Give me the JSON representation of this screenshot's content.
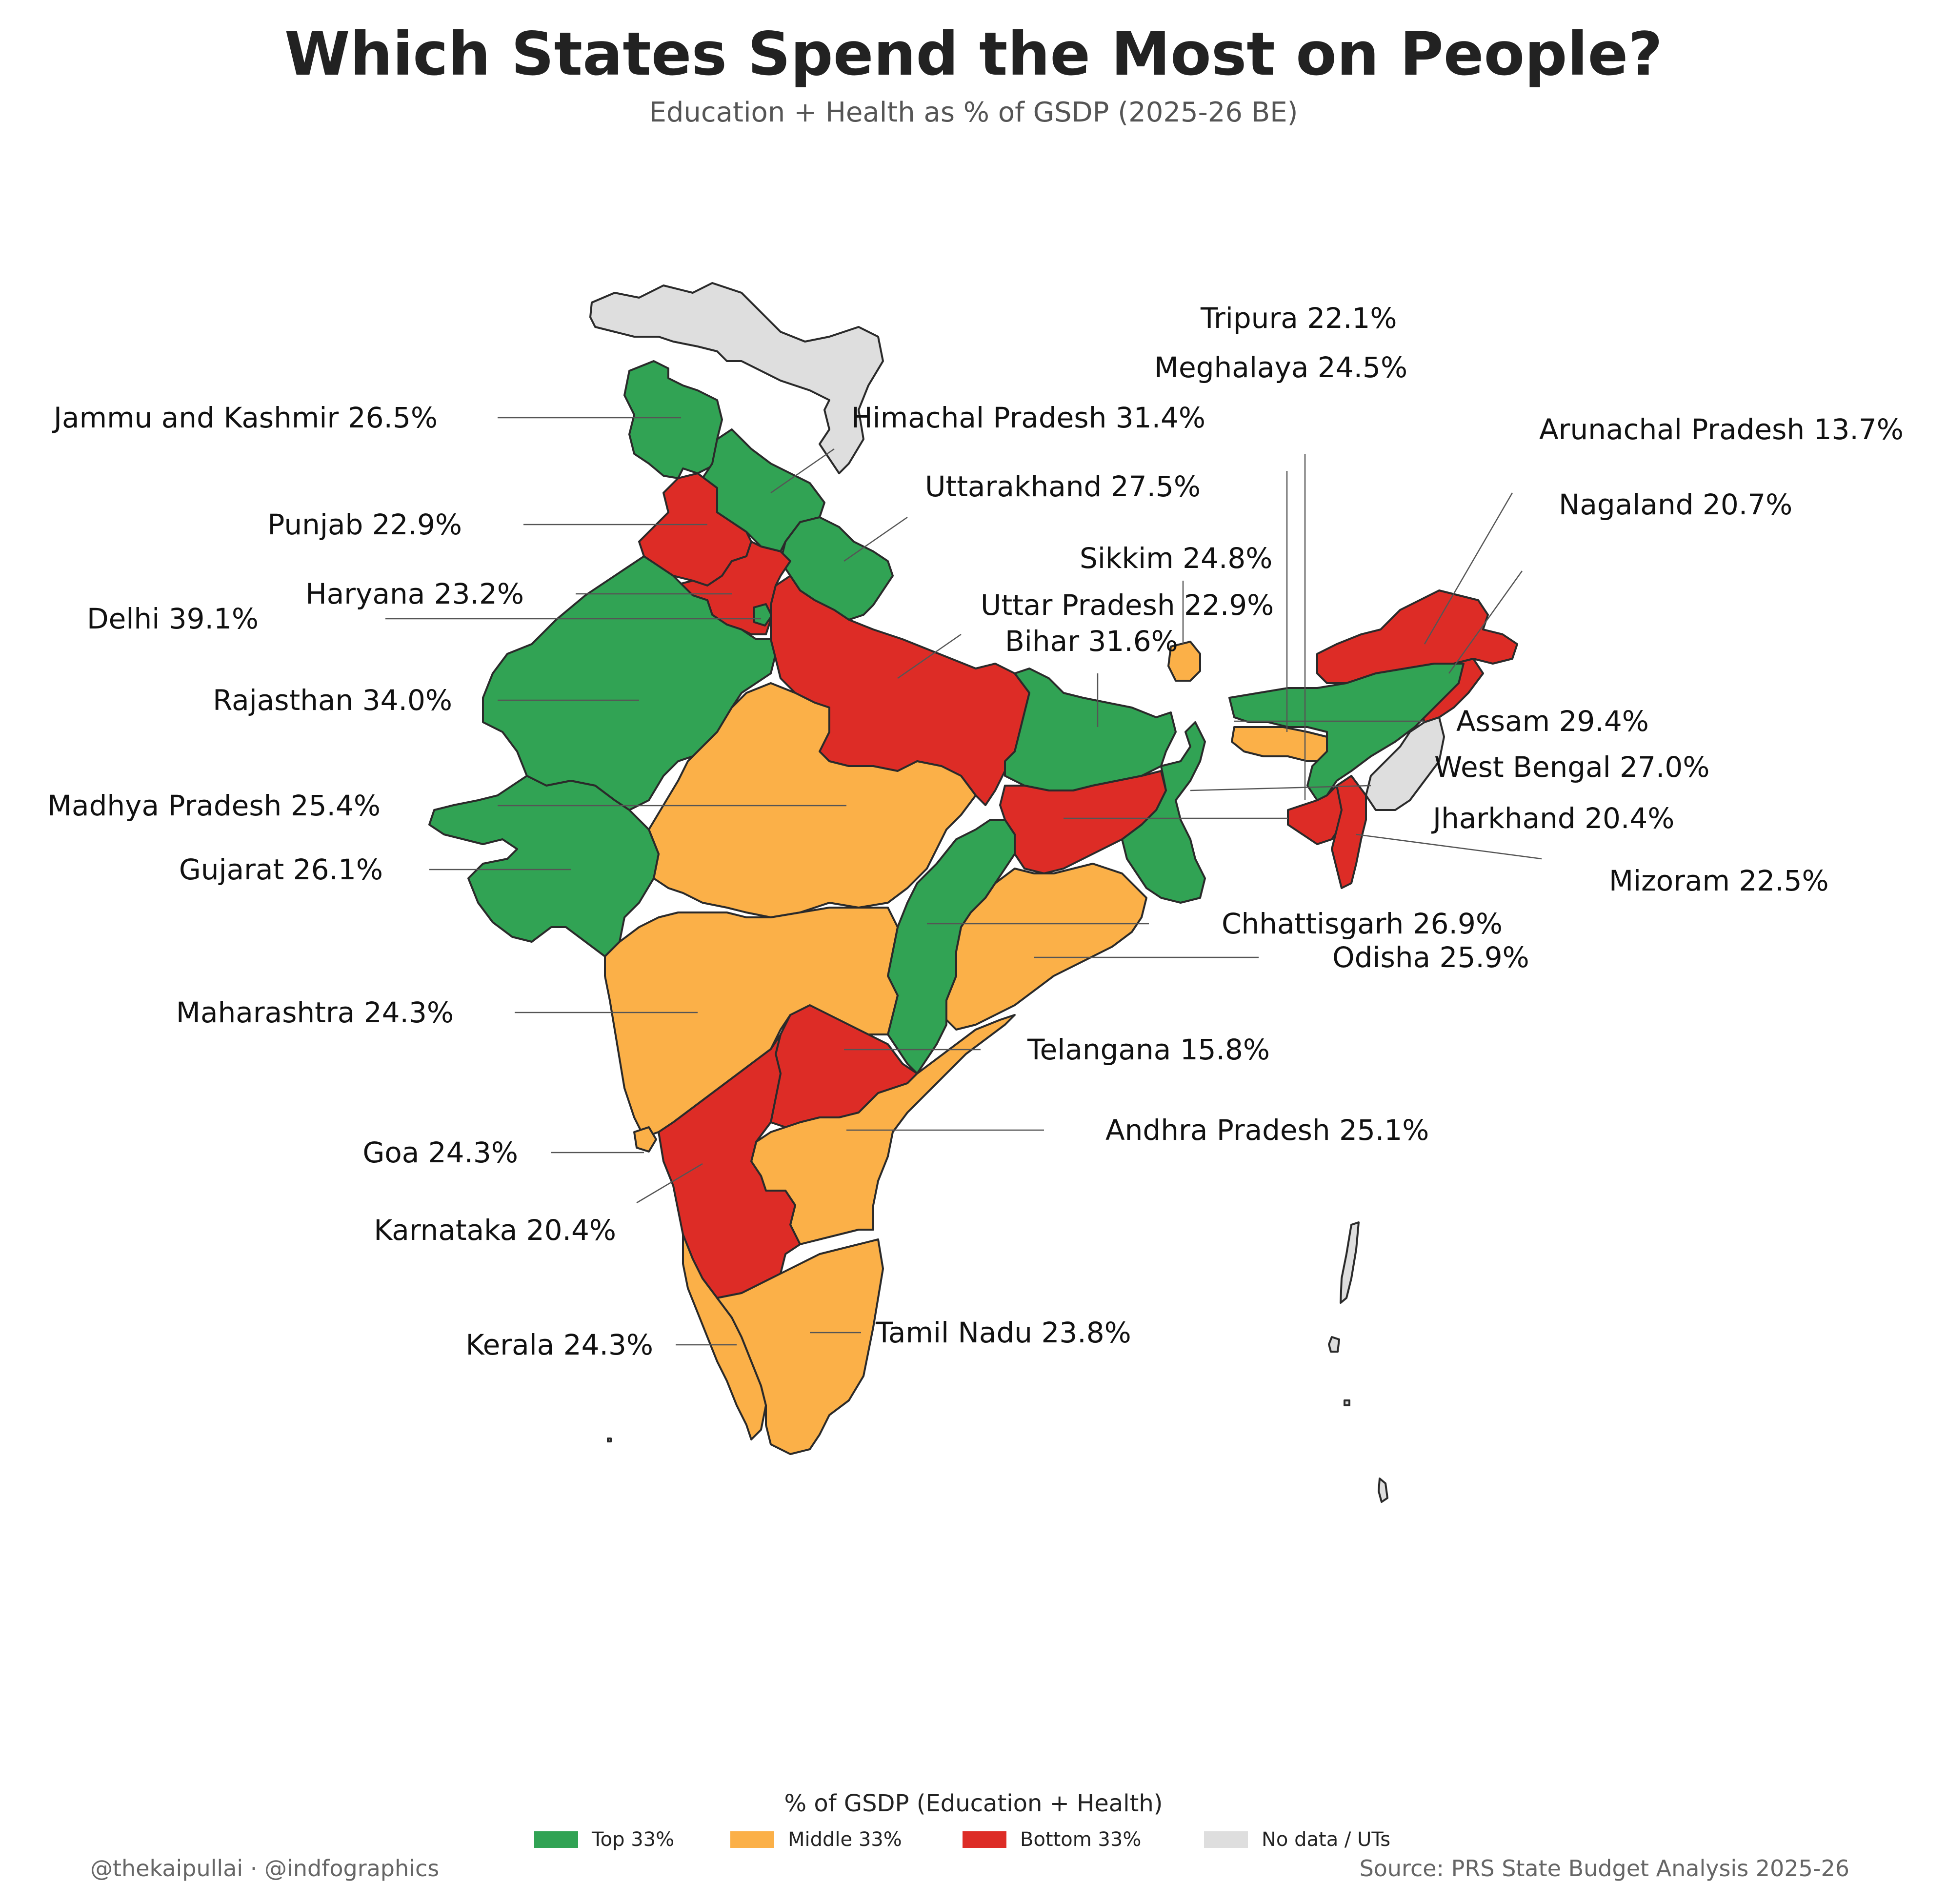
{
  "title": "Which States Spend the Most on People?",
  "subtitle": "Education + Health as % of GSDP (2025-26 BE)",
  "colors": {
    "top": "#31a354",
    "middle": "#fbb048",
    "bottom": "#dd2c26",
    "nodata": "#dedede"
  },
  "legend": {
    "title": "% of GSDP (Education + Health)",
    "items": [
      {
        "label": "Top 33%",
        "color": "#31a354"
      },
      {
        "label": "Middle 33%",
        "color": "#fbb048"
      },
      {
        "label": "Bottom 33%",
        "color": "#dd2c26"
      },
      {
        "label": "No data / UTs",
        "color": "#dedede"
      }
    ]
  },
  "footer": {
    "credit": "@thekaipullai · @indfographics",
    "source": "Source: PRS State Budget Analysis 2025-26"
  },
  "map_data": {
    "type": "choropleth",
    "region": "India",
    "metric": "Education + Health as % of GSDP",
    "states": [
      {
        "id": "jk",
        "name": "Jammu and Kashmir",
        "value": 26.5,
        "label": "Jammu and Kashmir 26.5%",
        "tier": "top"
      },
      {
        "id": "hp",
        "name": "Himachal Pradesh",
        "value": 31.4,
        "label": "Himachal Pradesh 31.4%",
        "tier": "top"
      },
      {
        "id": "pb",
        "name": "Punjab",
        "value": 22.9,
        "label": "Punjab 22.9%",
        "tier": "bottom"
      },
      {
        "id": "uk",
        "name": "Uttarakhand",
        "value": 27.5,
        "label": "Uttarakhand 27.5%",
        "tier": "top"
      },
      {
        "id": "hr",
        "name": "Haryana",
        "value": 23.2,
        "label": "Haryana 23.2%",
        "tier": "bottom"
      },
      {
        "id": "dl",
        "name": "Delhi",
        "value": 39.1,
        "label": "Delhi 39.1%",
        "tier": "top"
      },
      {
        "id": "rj",
        "name": "Rajasthan",
        "value": 34.0,
        "label": "Rajasthan 34.0%",
        "tier": "top"
      },
      {
        "id": "up",
        "name": "Uttar Pradesh",
        "value": 22.9,
        "label": "Uttar Pradesh 22.9%",
        "tier": "bottom"
      },
      {
        "id": "br",
        "name": "Bihar",
        "value": 31.6,
        "label": "Bihar 31.6%",
        "tier": "top"
      },
      {
        "id": "sk",
        "name": "Sikkim",
        "value": 24.8,
        "label": "Sikkim 24.8%",
        "tier": "middle"
      },
      {
        "id": "tr",
        "name": "Tripura",
        "value": 22.1,
        "label": "Tripura 22.1%",
        "tier": "bottom"
      },
      {
        "id": "ml",
        "name": "Meghalaya",
        "value": 24.5,
        "label": "Meghalaya 24.5%",
        "tier": "middle"
      },
      {
        "id": "ar",
        "name": "Arunachal Pradesh",
        "value": 13.7,
        "label": "Arunachal Pradesh 13.7%",
        "tier": "bottom"
      },
      {
        "id": "nl",
        "name": "Nagaland",
        "value": 20.7,
        "label": "Nagaland 20.7%",
        "tier": "bottom"
      },
      {
        "id": "as",
        "name": "Assam",
        "value": 29.4,
        "label": "Assam 29.4%",
        "tier": "top"
      },
      {
        "id": "wb",
        "name": "West Bengal",
        "value": 27.0,
        "label": "West Bengal 27.0%",
        "tier": "top"
      },
      {
        "id": "jh",
        "name": "Jharkhand",
        "value": 20.4,
        "label": "Jharkhand 20.4%",
        "tier": "bottom"
      },
      {
        "id": "mz",
        "name": "Mizoram",
        "value": 22.5,
        "label": "Mizoram 22.5%",
        "tier": "bottom"
      },
      {
        "id": "mp",
        "name": "Madhya Pradesh",
        "value": 25.4,
        "label": "Madhya Pradesh 25.4%",
        "tier": "middle"
      },
      {
        "id": "gj",
        "name": "Gujarat",
        "value": 26.1,
        "label": "Gujarat 26.1%",
        "tier": "top"
      },
      {
        "id": "cg",
        "name": "Chhattisgarh",
        "value": 26.9,
        "label": "Chhattisgarh 26.9%",
        "tier": "top"
      },
      {
        "id": "od",
        "name": "Odisha",
        "value": 25.9,
        "label": "Odisha 25.9%",
        "tier": "middle"
      },
      {
        "id": "mh",
        "name": "Maharashtra",
        "value": 24.3,
        "label": "Maharashtra 24.3%",
        "tier": "middle"
      },
      {
        "id": "tg",
        "name": "Telangana",
        "value": 15.8,
        "label": "Telangana 15.8%",
        "tier": "bottom"
      },
      {
        "id": "ap",
        "name": "Andhra Pradesh",
        "value": 25.1,
        "label": "Andhra Pradesh 25.1%",
        "tier": "middle"
      },
      {
        "id": "ga",
        "name": "Goa",
        "value": 24.3,
        "label": "Goa 24.3%",
        "tier": "middle"
      },
      {
        "id": "ka",
        "name": "Karnataka",
        "value": 20.4,
        "label": "Karnataka 20.4%",
        "tier": "bottom"
      },
      {
        "id": "kl",
        "name": "Kerala",
        "value": 24.3,
        "label": "Kerala 24.3%",
        "tier": "middle"
      },
      {
        "id": "tn",
        "name": "Tamil Nadu",
        "value": 23.8,
        "label": "Tamil Nadu 23.8%",
        "tier": "middle"
      }
    ],
    "nodata_regions": [
      "ladakh",
      "manipur",
      "andaman-nicobar",
      "lakshadweep"
    ]
  }
}
